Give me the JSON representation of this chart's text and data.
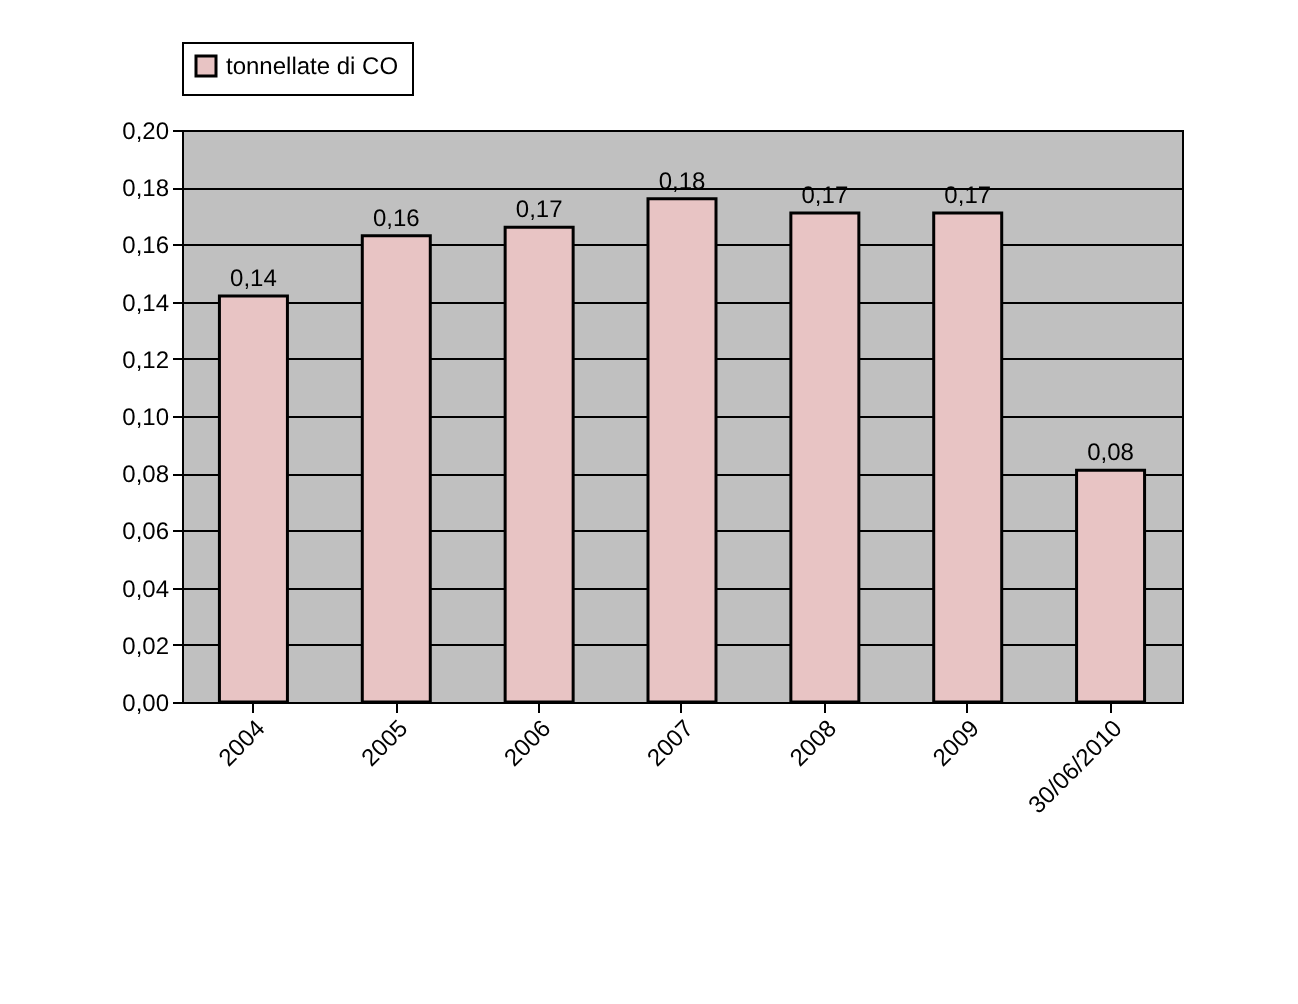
{
  "chart_data": {
    "type": "bar",
    "categories": [
      "2004",
      "2005",
      "2006",
      "2007",
      "2008",
      "2009",
      "30/06/2010"
    ],
    "series": [
      {
        "name": "tonnellate di CO",
        "color": "#e8c4c4",
        "values": [
          0.142,
          0.163,
          0.166,
          0.176,
          0.171,
          0.171,
          0.081
        ],
        "value_labels": [
          "0,14",
          "0,16",
          "0,17",
          "0,18",
          "0,17",
          "0,17",
          "0,08"
        ]
      }
    ],
    "ylim": [
      0,
      0.2
    ],
    "yticks": [
      {
        "value": 0,
        "label": "0,00"
      },
      {
        "value": 0.02,
        "label": "0,02"
      },
      {
        "value": 0.04,
        "label": "0,04"
      },
      {
        "value": 0.06,
        "label": "0,06"
      },
      {
        "value": 0.08,
        "label": "0,08"
      },
      {
        "value": 0.1,
        "label": "0,10"
      },
      {
        "value": 0.12,
        "label": "0,12"
      },
      {
        "value": 0.14,
        "label": "0,14"
      },
      {
        "value": 0.16,
        "label": "0,16"
      },
      {
        "value": 0.18,
        "label": "0,18"
      },
      {
        "value": 0.2,
        "label": "0,20"
      }
    ],
    "grid": "y",
    "legend": "top"
  }
}
